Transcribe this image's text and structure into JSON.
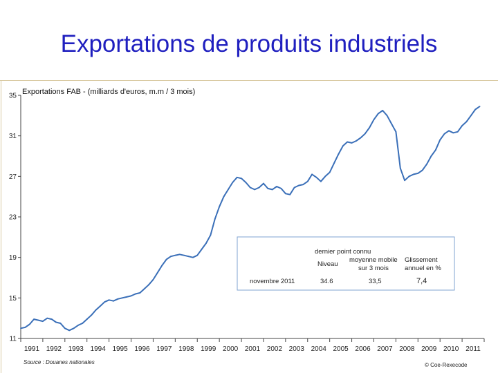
{
  "slide": {
    "title": "Exportations de produits industriels"
  },
  "chart_data": {
    "type": "line",
    "title": "Exportations FAB - (milliards d'euros, m.m / 3 mois)",
    "ylim": [
      11,
      35
    ],
    "yticks": [
      35,
      31,
      27,
      23,
      19,
      15,
      11
    ],
    "xlim": [
      1991,
      2012
    ],
    "xticks": [
      "1991",
      "1992",
      "1993",
      "1994",
      "1995",
      "1996",
      "1997",
      "1998",
      "1999",
      "2000",
      "2001",
      "2002",
      "2003",
      "2004",
      "2005",
      "2006",
      "2007",
      "2008",
      "2009",
      "2010",
      "2011"
    ],
    "series": [
      {
        "name": "Exportations FAB",
        "color": "#3a6fb8",
        "x": [
          1991.0,
          1991.2,
          1991.4,
          1991.6,
          1991.8,
          1992.0,
          1992.2,
          1992.4,
          1992.6,
          1992.8,
          1993.0,
          1993.2,
          1993.4,
          1993.6,
          1993.8,
          1994.0,
          1994.2,
          1994.4,
          1994.6,
          1994.8,
          1995.0,
          1995.2,
          1995.4,
          1995.6,
          1995.8,
          1996.0,
          1996.2,
          1996.4,
          1996.6,
          1996.8,
          1997.0,
          1997.2,
          1997.4,
          1997.6,
          1997.8,
          1998.0,
          1998.2,
          1998.4,
          1998.6,
          1998.8,
          1999.0,
          1999.2,
          1999.4,
          1999.6,
          1999.8,
          2000.0,
          2000.2,
          2000.4,
          2000.6,
          2000.8,
          2001.0,
          2001.2,
          2001.4,
          2001.6,
          2001.8,
          2002.0,
          2002.2,
          2002.4,
          2002.6,
          2002.8,
          2003.0,
          2003.2,
          2003.4,
          2003.6,
          2003.8,
          2004.0,
          2004.2,
          2004.4,
          2004.6,
          2004.8,
          2005.0,
          2005.2,
          2005.4,
          2005.6,
          2005.8,
          2006.0,
          2006.2,
          2006.4,
          2006.6,
          2006.8,
          2007.0,
          2007.2,
          2007.4,
          2007.6,
          2007.8,
          2008.0,
          2008.2,
          2008.4,
          2008.6,
          2008.8,
          2009.0,
          2009.2,
          2009.4,
          2009.6,
          2009.8,
          2010.0,
          2010.2,
          2010.4,
          2010.6,
          2010.8,
          2011.0,
          2011.2,
          2011.4,
          2011.6,
          2011.8
        ],
        "values": [
          12.0,
          12.1,
          12.4,
          12.9,
          12.8,
          12.7,
          13.0,
          12.9,
          12.6,
          12.5,
          12.0,
          11.8,
          12.0,
          12.3,
          12.5,
          12.9,
          13.3,
          13.8,
          14.2,
          14.6,
          14.8,
          14.7,
          14.9,
          15.0,
          15.1,
          15.2,
          15.4,
          15.5,
          15.9,
          16.3,
          16.8,
          17.5,
          18.2,
          18.8,
          19.1,
          19.2,
          19.3,
          19.2,
          19.1,
          19.0,
          19.2,
          19.8,
          20.4,
          21.2,
          22.8,
          24.0,
          25.0,
          25.7,
          26.4,
          26.9,
          26.8,
          26.4,
          25.9,
          25.7,
          25.9,
          26.3,
          25.8,
          25.7,
          26.0,
          25.8,
          25.3,
          25.2,
          25.9,
          26.1,
          26.2,
          26.5,
          27.2,
          26.9,
          26.5,
          27.0,
          27.4,
          28.3,
          29.2,
          30.0,
          30.4,
          30.3,
          30.5,
          30.8,
          31.2,
          31.8,
          32.6,
          33.2,
          33.5,
          33.0,
          32.2,
          31.4,
          27.8,
          26.6,
          27.0,
          27.2,
          27.3,
          27.6,
          28.2,
          29.0,
          29.6,
          30.6,
          31.2,
          31.5,
          31.3,
          31.4,
          32.0,
          32.4,
          33.0,
          33.6,
          33.9
        ]
      }
    ],
    "annotation_box": {
      "header1": "dernier point connu",
      "col1_header": "Niveau",
      "col2_header_line1": "moyenne mobile",
      "col2_header_line2": "sur 3 mois",
      "col3_header_line1": "Glissement",
      "col3_header_line2": "annuel en %",
      "row_label": "novembre 2011",
      "niveau": "34.6",
      "moyenne": "33,5",
      "glissement": "7,4"
    },
    "source": "Source : Douanes nationales",
    "credit": "© Coe-Rexecode"
  }
}
